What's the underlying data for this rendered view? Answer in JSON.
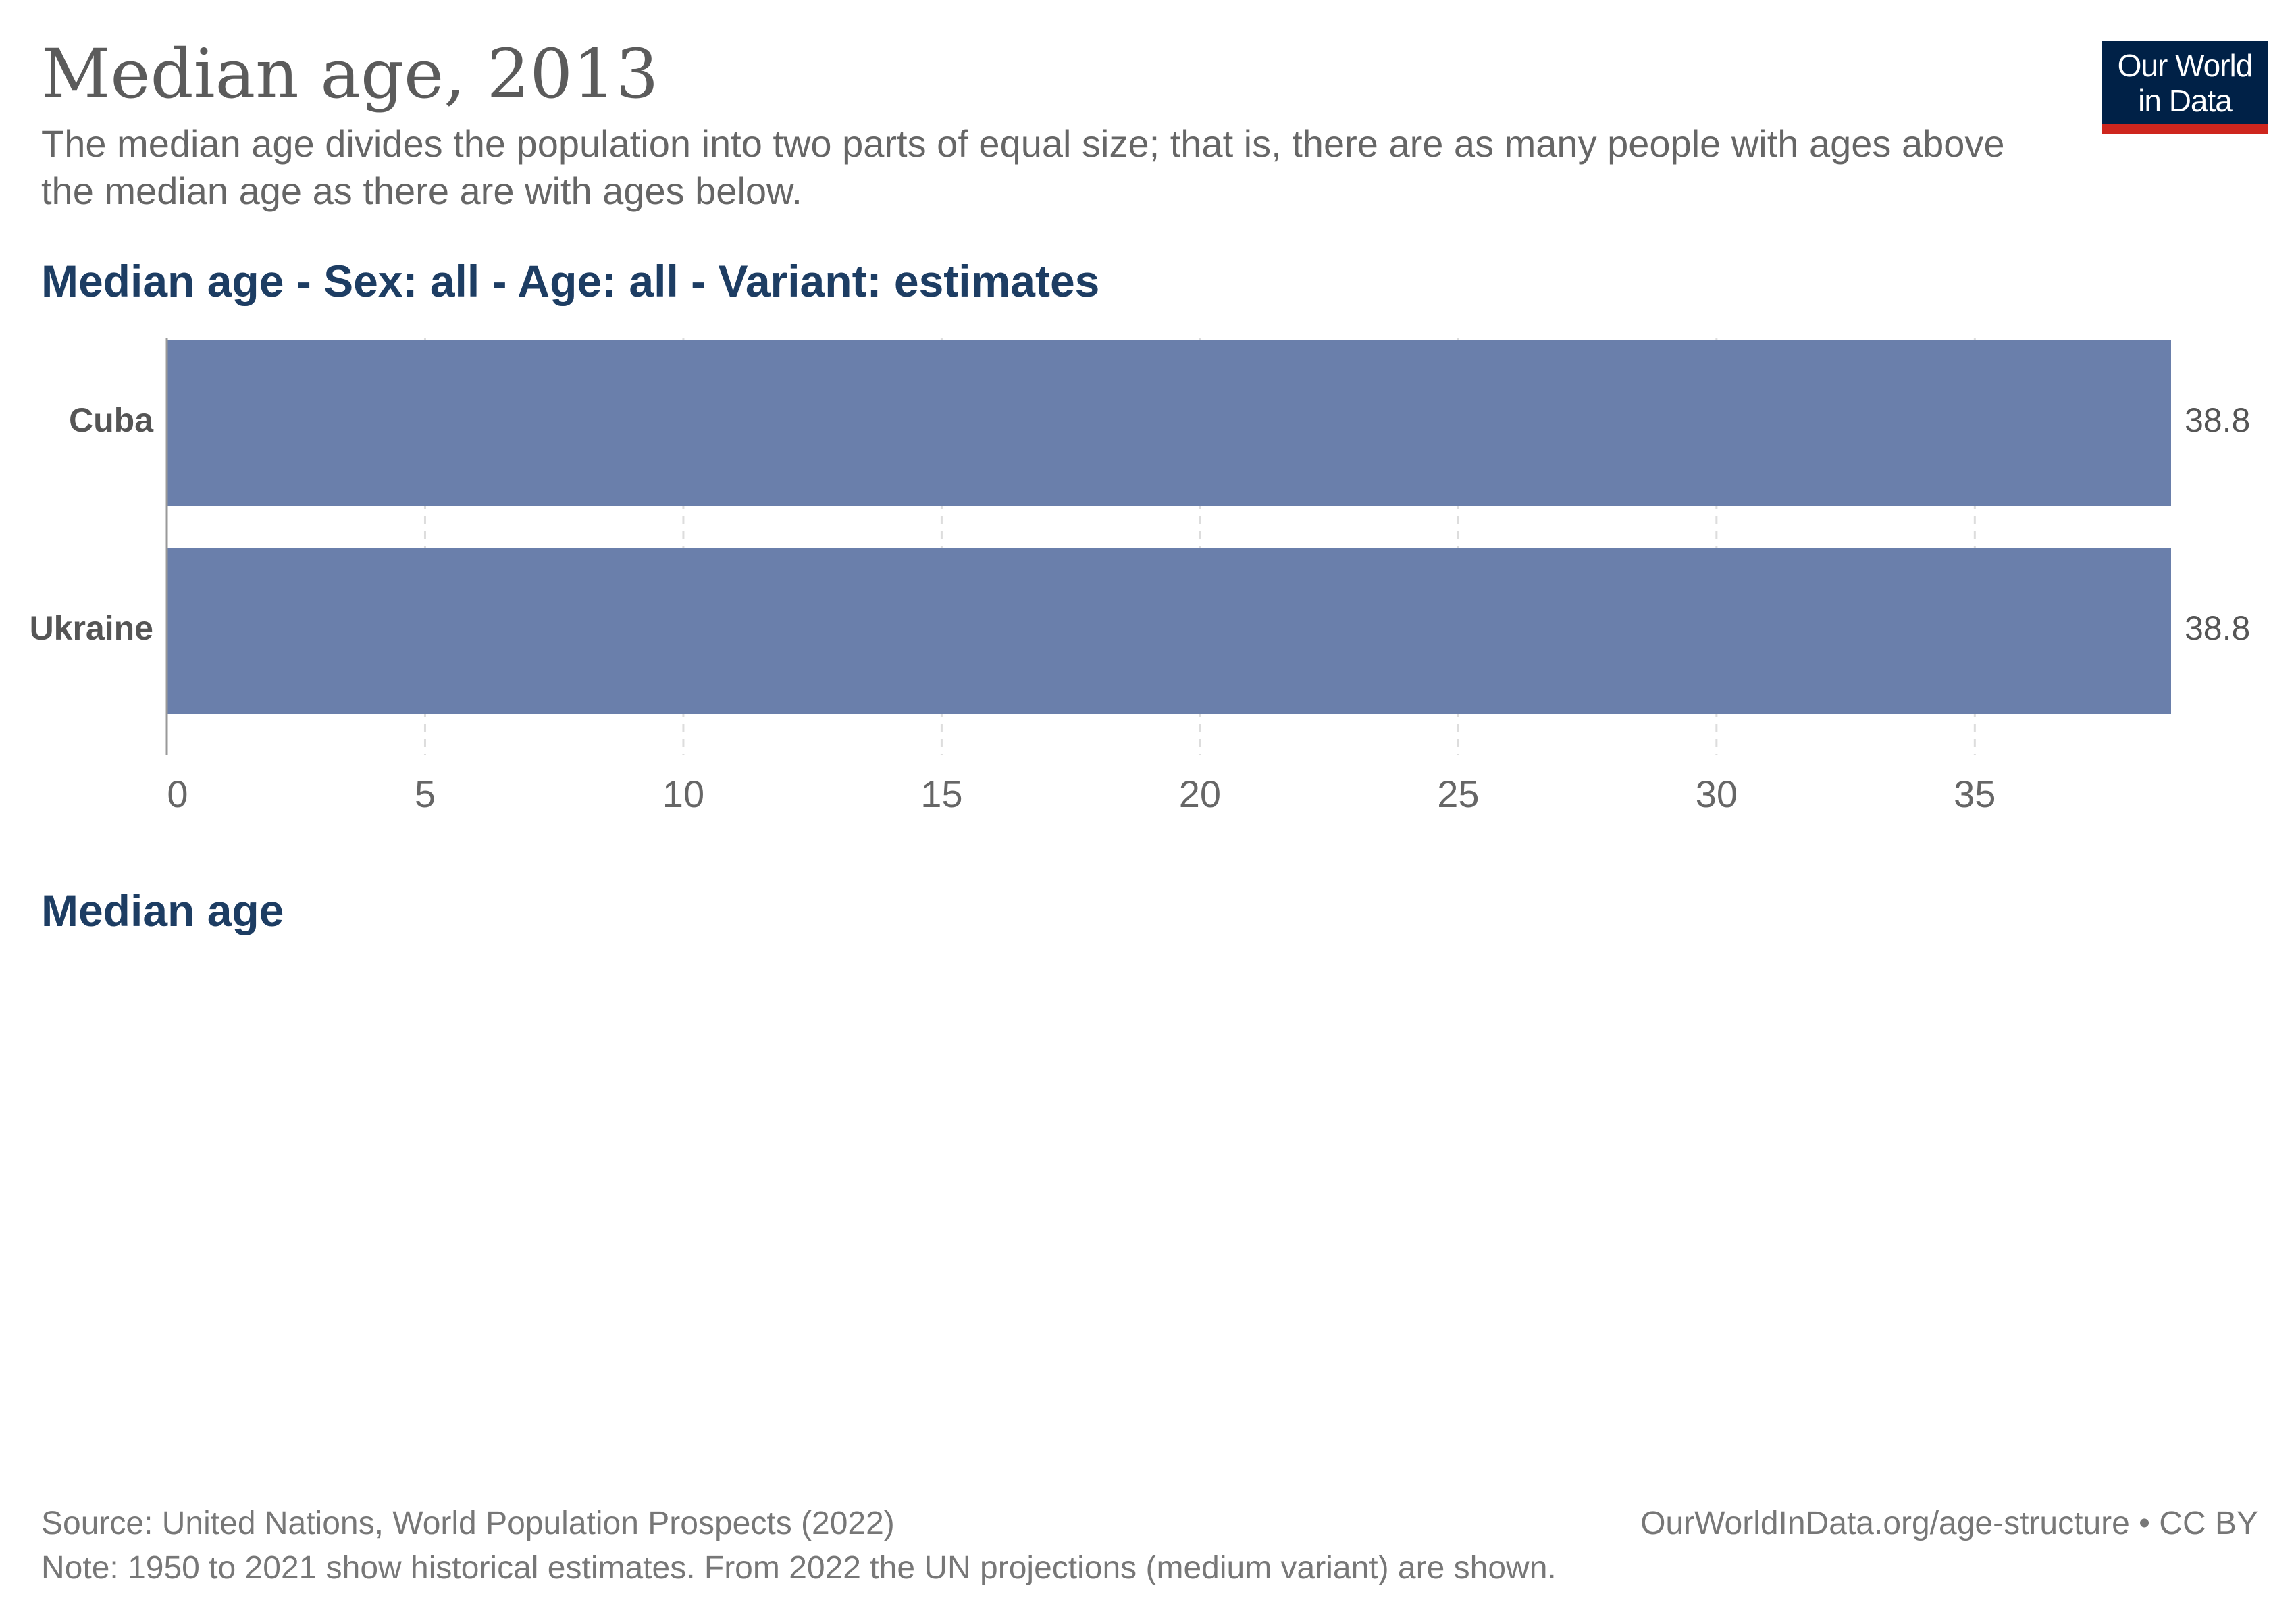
{
  "header": {
    "title": "Median age, 2013",
    "subtitle": "The median age divides the population into two parts of equal size; that is, there are as many people with ages above the median age as there are with ages below."
  },
  "logo": {
    "line1": "Our World",
    "line2": "in Data",
    "bg_color": "#002147",
    "accent_color": "#ce261e"
  },
  "section": {
    "title": "Median age"
  },
  "footer": {
    "source": "Source: United Nations, World Population Prospects (2022)",
    "note": "Note: 1950 to 2021 show historical estimates. From 2022 the UN projections (medium variant) are shown.",
    "url": "OurWorldInData.org/age-structure • CC BY"
  },
  "chart_data": {
    "type": "bar",
    "orientation": "horizontal",
    "title": "Median age - Sex: all - Age: all - Variant: estimates",
    "categories": [
      "Cuba",
      "Ukraine"
    ],
    "values": [
      38.8,
      38.8
    ],
    "value_labels": [
      "38.8",
      "38.8"
    ],
    "xlim": [
      0,
      38.8
    ],
    "xticks": [
      0,
      5,
      10,
      15,
      20,
      25,
      30,
      35
    ],
    "grid": true,
    "bar_color": "#6a7fab"
  }
}
